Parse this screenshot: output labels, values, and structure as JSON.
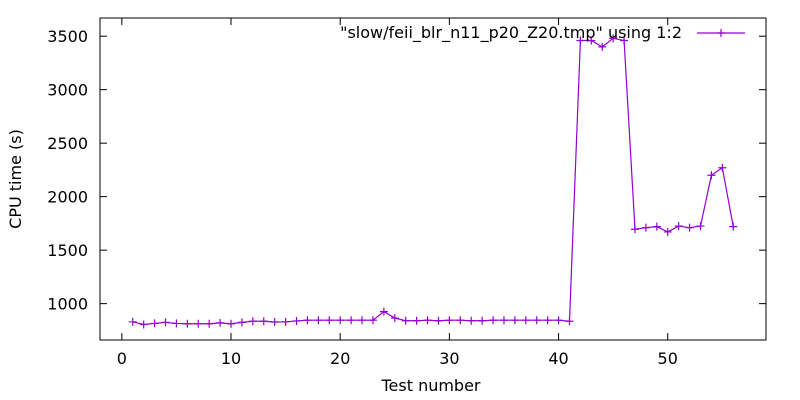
{
  "chart_data": {
    "type": "line",
    "xlabel": "Test number",
    "ylabel": "CPU time (s)",
    "xlim": [
      -2,
      59
    ],
    "ylim": [
      660,
      3670
    ],
    "xticks": [
      0,
      10,
      20,
      30,
      40,
      50
    ],
    "yticks": [
      1000,
      1500,
      2000,
      2500,
      3000,
      3500
    ],
    "grid": false,
    "legend_position": "top-right",
    "series": [
      {
        "name": "\"slow/feii_blr_n11_p20_Z20.tmp\" using 1:2",
        "color": "#9400d3",
        "marker": "plus",
        "x": [
          1,
          2,
          3,
          4,
          5,
          6,
          7,
          8,
          9,
          10,
          11,
          12,
          13,
          14,
          15,
          16,
          17,
          18,
          19,
          20,
          21,
          22,
          23,
          24,
          25,
          26,
          27,
          28,
          29,
          30,
          31,
          32,
          33,
          34,
          35,
          36,
          37,
          38,
          39,
          40,
          41,
          42,
          43,
          44,
          45,
          46,
          47,
          48,
          49,
          50,
          51,
          52,
          53,
          54,
          55,
          56
        ],
        "y": [
          830,
          805,
          815,
          825,
          815,
          812,
          812,
          812,
          820,
          812,
          825,
          835,
          835,
          828,
          830,
          838,
          845,
          845,
          845,
          845,
          845,
          845,
          845,
          925,
          865,
          840,
          840,
          845,
          840,
          845,
          845,
          840,
          840,
          845,
          845,
          845,
          845,
          845,
          845,
          845,
          835,
          3460,
          3460,
          3400,
          3480,
          3460,
          1695,
          1710,
          1720,
          1670,
          1725,
          1710,
          1725,
          2200,
          2270,
          1720
        ]
      }
    ]
  }
}
